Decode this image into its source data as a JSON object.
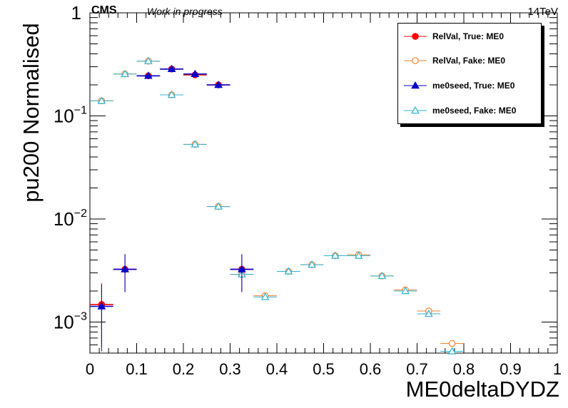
{
  "header": {
    "experiment": "CMS",
    "status": "Work in progress",
    "energy": "14TeV"
  },
  "chart_data": {
    "type": "scatter",
    "xlabel": "ME0deltaDYDZ",
    "ylabel": "pu200 Normalised",
    "xlim": [
      0,
      1
    ],
    "ylim": [
      0.0005,
      1
    ],
    "yscale": "log",
    "bin_width": 0.05,
    "x_ticks": [
      "0",
      "0.1",
      "0.2",
      "0.3",
      "0.4",
      "0.5",
      "0.6",
      "0.7",
      "0.8",
      "0.9",
      "1"
    ],
    "y_ticks": [
      {
        "base": "1",
        "exp": ""
      },
      {
        "base": "10",
        "exp": "−1"
      },
      {
        "base": "10",
        "exp": "−2"
      },
      {
        "base": "10",
        "exp": "−3"
      }
    ],
    "legend_position": "top-right",
    "series": [
      {
        "name": "RelVal, True: ME0",
        "color": "#ff0000",
        "marker": "circle-filled",
        "x": [
          0.025,
          0.075,
          0.125,
          0.175,
          0.225,
          0.275,
          0.325
        ],
        "y": [
          0.00148,
          0.00325,
          0.245,
          0.285,
          0.25,
          0.2,
          0.00325
        ],
        "yerr": [
          0.0009,
          0.0013,
          0.012,
          0.013,
          0.012,
          0.011,
          0.0013
        ]
      },
      {
        "name": "RelVal, Fake: ME0",
        "color": "#ff7f2a",
        "marker": "circle-open",
        "x": [
          0.025,
          0.075,
          0.125,
          0.175,
          0.225,
          0.275,
          0.325,
          0.375,
          0.425,
          0.475,
          0.525,
          0.575,
          0.625,
          0.675,
          0.725,
          0.775
        ],
        "y": [
          0.14,
          0.255,
          0.34,
          0.16,
          0.053,
          0.0132,
          0.0029,
          0.0018,
          0.0031,
          0.0036,
          0.0044,
          0.0045,
          0.0028,
          0.00205,
          0.00128,
          0.00062
        ],
        "yerr": []
      },
      {
        "name": "me0seed, True: ME0",
        "color": "#0000cc",
        "marker": "triangle-filled",
        "x": [
          0.025,
          0.075,
          0.125,
          0.175,
          0.225,
          0.275,
          0.325
        ],
        "y": [
          0.00142,
          0.00325,
          0.245,
          0.285,
          0.255,
          0.2,
          0.00325
        ],
        "yerr": [
          0.0009,
          0.0013,
          0.012,
          0.013,
          0.012,
          0.011,
          0.0013
        ]
      },
      {
        "name": "me0seed, Fake: ME0",
        "color": "#2ab4d4",
        "marker": "triangle-open",
        "x": [
          0.025,
          0.075,
          0.125,
          0.175,
          0.225,
          0.275,
          0.325,
          0.375,
          0.425,
          0.475,
          0.525,
          0.575,
          0.625,
          0.675,
          0.725,
          0.775
        ],
        "y": [
          0.14,
          0.255,
          0.34,
          0.16,
          0.053,
          0.0132,
          0.0029,
          0.00175,
          0.0031,
          0.0036,
          0.0044,
          0.0044,
          0.0028,
          0.002,
          0.0012,
          0.00052
        ],
        "yerr": []
      }
    ]
  }
}
